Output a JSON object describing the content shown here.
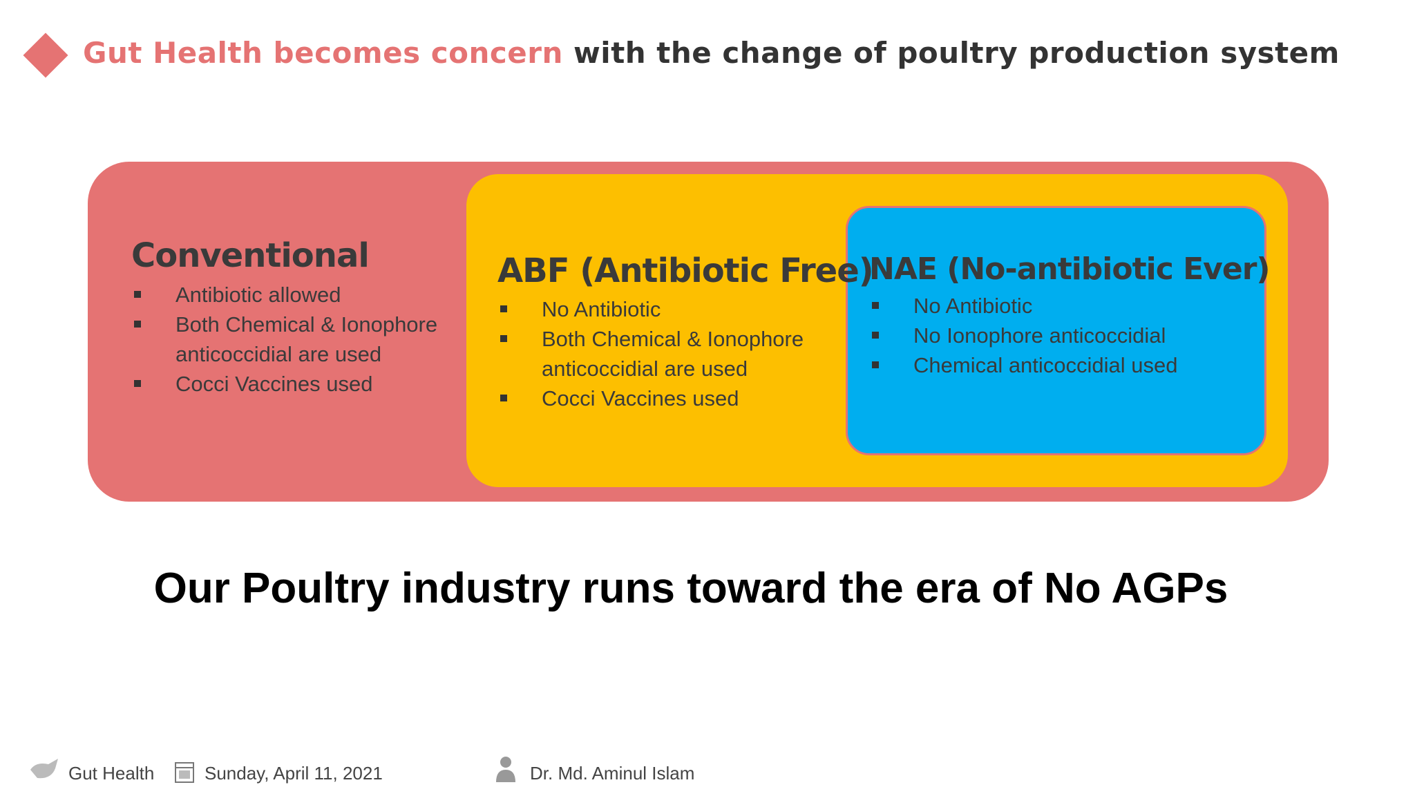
{
  "header": {
    "title_highlight": "Gut Health becomes concern",
    "title_rest": "with the change of poultry production system"
  },
  "boxes": [
    {
      "heading": "Conventional",
      "items": [
        "Antibiotic allowed",
        "Both Chemical & Ionophore anticoccidial are used",
        "Cocci Vaccines used"
      ]
    },
    {
      "heading": "ABF (Antibiotic Free)",
      "items": [
        "No Antibiotic",
        "Both Chemical & Ionophore anticoccidial are used",
        "Cocci Vaccines used"
      ]
    },
    {
      "heading": "NAE (No-antibiotic Ever)",
      "items": [
        "No Antibiotic",
        "No Ionophore anticoccidial",
        "Chemical anticoccidial used"
      ]
    }
  ],
  "tagline": "Our Poultry industry runs toward the era of No AGPs",
  "footer": {
    "topic": "Gut Health",
    "date": "Sunday, April 11, 2021",
    "author": "Dr. Md. Aminul Islam"
  }
}
